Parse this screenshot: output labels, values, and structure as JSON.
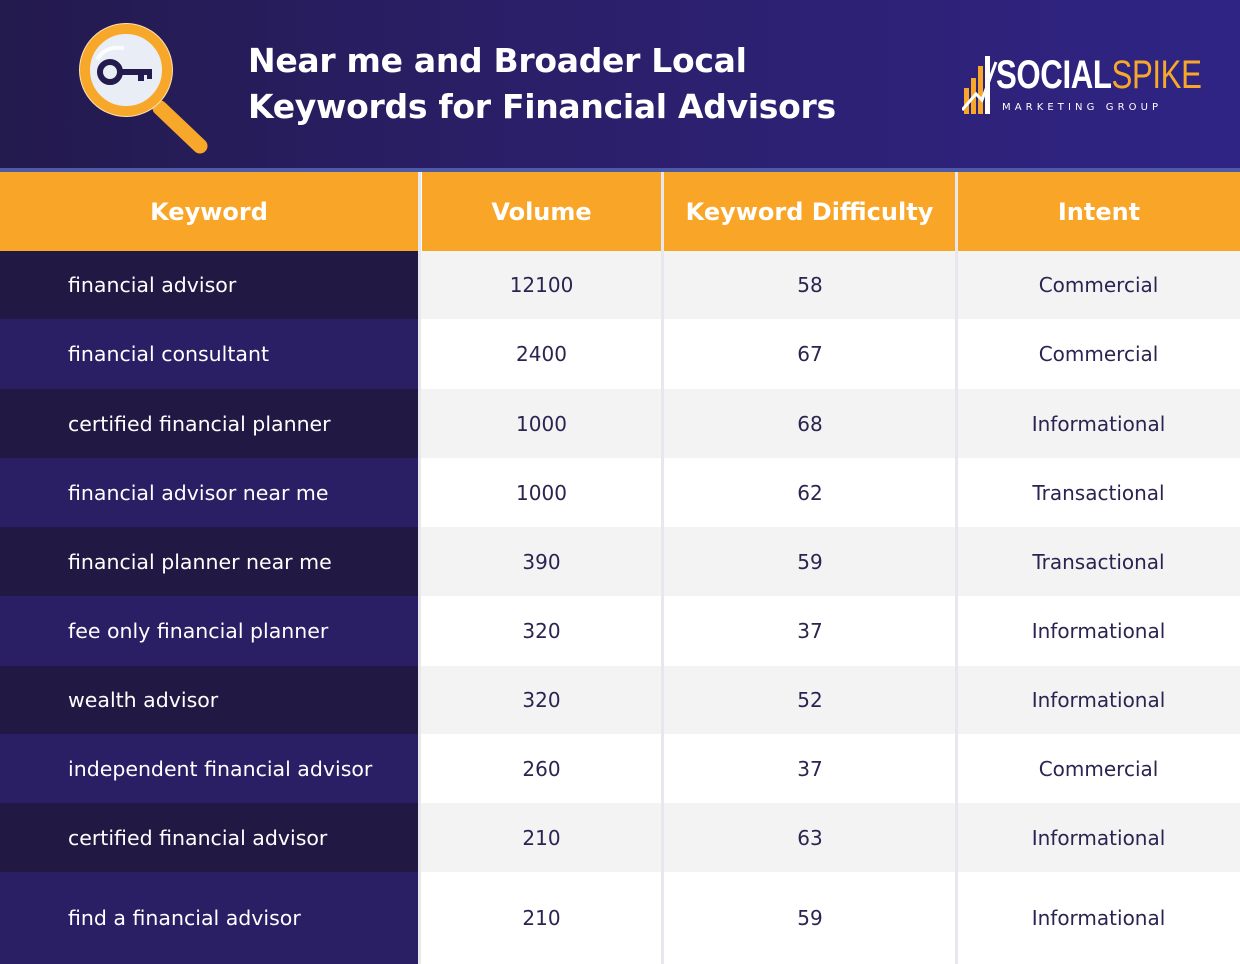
{
  "header": {
    "title_line1": "Near me and Broader Local",
    "title_line2": "Keywords for Financial Advisors",
    "icon": "magnifier-key-icon",
    "logo": {
      "word1": "SOCIAL",
      "word2": "SPIKE",
      "subtitle": "MARKETING GROUP"
    }
  },
  "colors": {
    "header_bg": "#2b1f6a",
    "accent_orange": "#f9a528",
    "row_dark": "#211943",
    "row_purple": "#2a1e64",
    "row_gray": "#f3f3f4",
    "text_dark": "#2a2450"
  },
  "table": {
    "columns": [
      "Keyword",
      "Volume",
      "Keyword Difficulty",
      "Intent"
    ],
    "rows": [
      {
        "keyword": "financial advisor",
        "volume": "12100",
        "difficulty": "58",
        "intent": "Commercial"
      },
      {
        "keyword": "financial consultant",
        "volume": "2400",
        "difficulty": "67",
        "intent": "Commercial"
      },
      {
        "keyword": "certified financial planner",
        "volume": "1000",
        "difficulty": "68",
        "intent": "Informational"
      },
      {
        "keyword": "financial advisor near me",
        "volume": "1000",
        "difficulty": "62",
        "intent": "Transactional"
      },
      {
        "keyword": "financial planner near me",
        "volume": "390",
        "difficulty": "59",
        "intent": "Transactional"
      },
      {
        "keyword": "fee only financial planner",
        "volume": "320",
        "difficulty": "37",
        "intent": "Informational"
      },
      {
        "keyword": "wealth advisor",
        "volume": "320",
        "difficulty": "52",
        "intent": "Informational"
      },
      {
        "keyword": "independent financial advisor",
        "volume": "260",
        "difficulty": "37",
        "intent": "Commercial"
      },
      {
        "keyword": "certified financial advisor",
        "volume": "210",
        "difficulty": "63",
        "intent": "Informational"
      },
      {
        "keyword": "find a financial advisor",
        "volume": "210",
        "difficulty": "59",
        "intent": "Informational"
      }
    ]
  }
}
